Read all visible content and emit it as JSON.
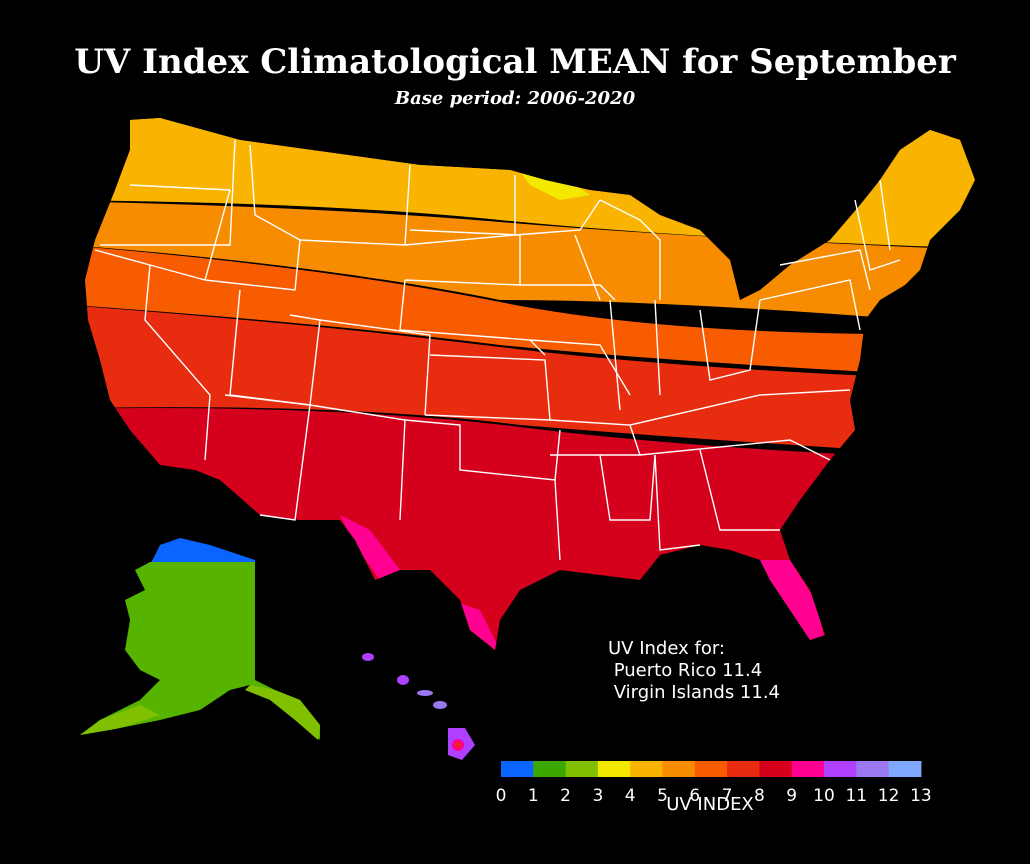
{
  "title": "UV Index Climatological MEAN for September",
  "subtitle": "Base period: 2006-2020",
  "territories": {
    "heading": "UV Index for:",
    "puerto_rico": " Puerto Rico 11.4",
    "virgin_islands": " Virgin Islands 11.4"
  },
  "legend": {
    "axis_label": "UV INDEX",
    "ticks": [
      "0",
      "1",
      "2",
      "3",
      "4",
      "5",
      "6",
      "7",
      "8",
      "9",
      "10",
      "11",
      "12",
      "13"
    ],
    "colors": [
      "#0a64ff",
      "#3aa800",
      "#80c000",
      "#f2e800",
      "#f8b400",
      "#f88c00",
      "#f85c00",
      "#e82c10",
      "#d4001c",
      "#ff0090",
      "#b040ff",
      "#9a78f0",
      "#80a8ff"
    ]
  }
}
